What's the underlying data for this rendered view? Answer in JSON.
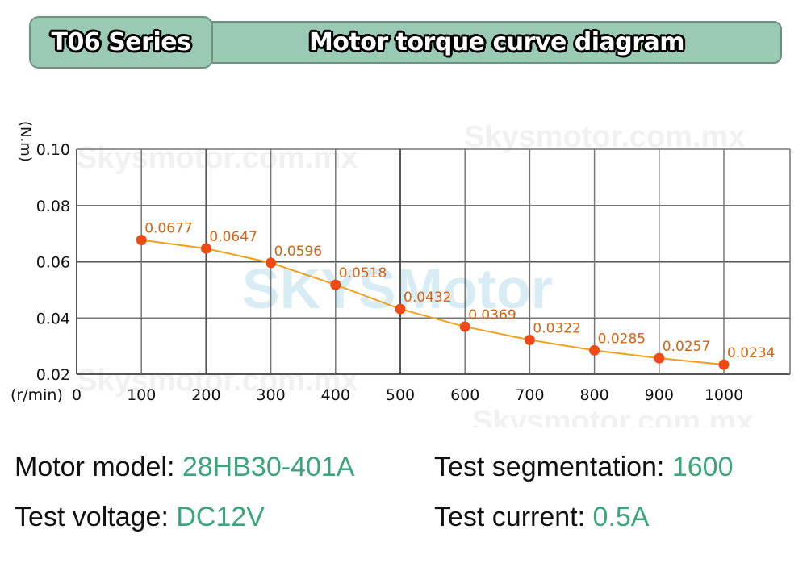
{
  "header": {
    "series_label": "T06 Series",
    "title": "Motor torque curve diagram"
  },
  "chart_data": {
    "type": "line",
    "title": "Motor torque curve diagram",
    "xlabel": "(r/min)",
    "ylabel": "(N.m)",
    "x": [
      100,
      200,
      300,
      400,
      500,
      600,
      700,
      800,
      900,
      1000
    ],
    "series": [
      {
        "name": "Torque",
        "values": [
          0.0677,
          0.0647,
          0.0596,
          0.0518,
          0.0432,
          0.0369,
          0.0322,
          0.0285,
          0.0257,
          0.0234
        ],
        "labels": [
          "0.0677",
          "0.0647",
          "0.0596",
          "0.0518",
          "0.0432",
          "0.0369",
          "0.0322",
          "0.0285",
          "0.0257",
          "0.0234"
        ],
        "color": "#f04a14",
        "line_color": "#f0a020"
      }
    ],
    "xticks": [
      "0",
      "100",
      "200",
      "300",
      "400",
      "500",
      "600",
      "700",
      "800",
      "900",
      "1000"
    ],
    "yticks": [
      "0.02",
      "0.04",
      "0.06",
      "0.08",
      "0.10"
    ],
    "xlim": [
      0,
      1100
    ],
    "ylim": [
      0.02,
      0.1
    ],
    "grid": true,
    "legend": "none",
    "watermarks": [
      "Skysmotor.com.mx",
      "SKYSMotor",
      "Skysmotor.com.mx",
      "Skysmotor.com.mx",
      "Skysmotor.com.mx"
    ]
  },
  "specs": {
    "motor_model_label": "Motor model:",
    "motor_model_value": "28HB30-401A",
    "segmentation_label": "Test segmentation:",
    "segmentation_value": "1600",
    "voltage_label": "Test voltage:",
    "voltage_value": "DC12V",
    "current_label": "Test current:",
    "current_value": "0.5A"
  },
  "colors": {
    "header_fill": "#9bcab4",
    "header_border": "#6f8f80",
    "value_green": "#3aa67a",
    "point_red": "#f04a14",
    "label_orange": "#d9620e"
  }
}
